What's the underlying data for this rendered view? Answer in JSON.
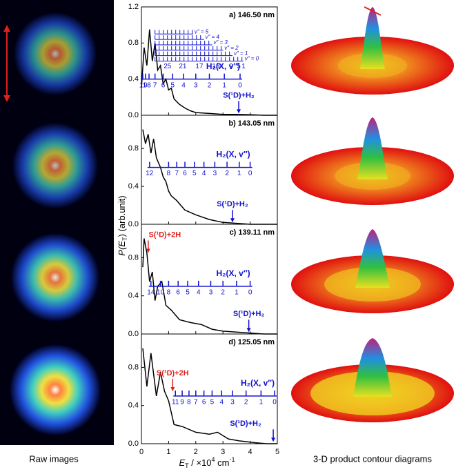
{
  "figure": {
    "y_label": [
      "P(E",
      "T",
      ") (arb.unit)"
    ],
    "x_label": [
      "E",
      "T",
      " / ×10",
      "4",
      " cm",
      "-1"
    ],
    "captions": [
      "Raw images",
      "3-D product contour diagrams"
    ]
  },
  "chart_data": [
    {
      "type": "line",
      "title": "a) 146.50 nm",
      "color": "#000000",
      "xlim": [
        0,
        5
      ],
      "ylim": [
        0,
        1.2
      ],
      "xticks": [
        0,
        1,
        2,
        3,
        4,
        5
      ],
      "yticks": [
        {
          "value": 0,
          "label": "0.0"
        },
        {
          "value": 0.4,
          "label": "0.4"
        },
        {
          "value": 0.8,
          "label": "0.8"
        },
        {
          "value": 1.2,
          "label": "1.2"
        }
      ],
      "x": [
        0,
        0.1,
        0.2,
        0.3,
        0.4,
        0.5,
        0.6,
        0.7,
        0.8,
        0.9,
        1.0,
        1.1,
        1.2,
        1.4,
        1.6,
        1.8,
        2.0,
        2.5,
        3.0,
        3.5,
        4.0,
        4.5,
        5.0
      ],
      "values": [
        0.3,
        0.75,
        0.55,
        0.95,
        0.6,
        0.8,
        0.5,
        0.55,
        0.35,
        0.4,
        0.28,
        0.3,
        0.18,
        0.12,
        0.08,
        0.05,
        0.03,
        0.02,
        0.01,
        0.01,
        0.005,
        0,
        0
      ],
      "ladder": {
        "label": "H₂(X, v″)",
        "y": 0.4,
        "ticks": [
          {
            "x": 0.05,
            "label": "11"
          },
          {
            "x": 0.15,
            "label": "9"
          },
          {
            "x": 0.28,
            "label": "8"
          },
          {
            "x": 0.5,
            "label": "7"
          },
          {
            "x": 0.8,
            "label": "6"
          },
          {
            "x": 1.15,
            "label": "5"
          },
          {
            "x": 1.55,
            "label": "4"
          },
          {
            "x": 2.0,
            "label": "3"
          },
          {
            "x": 2.5,
            "label": "2"
          },
          {
            "x": 3.05,
            "label": "1"
          },
          {
            "x": 3.63,
            "label": "0"
          }
        ]
      },
      "upper_ladders": [
        {
          "label": "v″ = 0",
          "y": 0.6,
          "x_end": 3.75
        },
        {
          "label": "v″ = 1",
          "y": 0.66,
          "x_end": 3.35
        },
        {
          "label": "v″ = 2",
          "y": 0.72,
          "x_end": 3.0
        },
        {
          "label": "v″ = 3",
          "y": 0.78,
          "x_end": 2.6
        },
        {
          "label": "v″ = 4",
          "y": 0.84,
          "x_end": 2.3
        },
        {
          "label": "v″ = 5",
          "y": 0.9,
          "x_end": 1.9
        }
      ],
      "upper_numbers": [
        {
          "x": 0.96,
          "label": "25"
        },
        {
          "x": 1.52,
          "label": "21"
        },
        {
          "x": 2.13,
          "label": "17"
        },
        {
          "x": 2.74,
          "label": "13"
        },
        {
          "x": 3.3,
          "label": "9"
        },
        {
          "x": 3.58,
          "label": "5"
        },
        {
          "x": 3.76,
          "label": "1"
        }
      ],
      "arrows": [
        {
          "text": "S(¹D)+H₂",
          "x": 3.58,
          "y": 0.02,
          "color": "#1010d0"
        }
      ]
    },
    {
      "type": "line",
      "title": "b) 143.05 nm",
      "color": "#000000",
      "xlim": [
        0,
        5
      ],
      "ylim": [
        0,
        1.15
      ],
      "xticks": [
        0,
        1,
        2,
        3,
        4,
        5
      ],
      "yticks": [
        {
          "value": 0,
          "label": "0.0"
        },
        {
          "value": 0.4,
          "label": "0.4"
        },
        {
          "value": 0.8,
          "label": "0.8"
        }
      ],
      "x": [
        0.05,
        0.15,
        0.25,
        0.35,
        0.45,
        0.55,
        0.7,
        0.8,
        0.9,
        1.0,
        1.1,
        1.3,
        1.6,
        2.0,
        2.5,
        3.0,
        3.5,
        4.0,
        4.5,
        5.0
      ],
      "values": [
        1.0,
        0.85,
        0.95,
        0.75,
        0.9,
        0.7,
        0.6,
        0.5,
        0.45,
        0.35,
        0.3,
        0.25,
        0.15,
        0.1,
        0.05,
        0.02,
        0.01,
        0,
        0,
        0
      ],
      "ladder": {
        "label": "H₂(X, v″)",
        "y": 0.6,
        "ticks": [
          {
            "x": 0.3,
            "label": "12"
          },
          {
            "x": 1.0,
            "label": "8"
          },
          {
            "x": 1.3,
            "label": "7"
          },
          {
            "x": 1.6,
            "label": "6"
          },
          {
            "x": 1.95,
            "label": "5"
          },
          {
            "x": 2.3,
            "label": "4"
          },
          {
            "x": 2.7,
            "label": "3"
          },
          {
            "x": 3.15,
            "label": "2"
          },
          {
            "x": 3.6,
            "label": "1"
          },
          {
            "x": 4.0,
            "label": "0"
          }
        ]
      },
      "arrows": [
        {
          "text": "S(¹D)+H₂",
          "x": 3.35,
          "y": 0.02,
          "color": "#1010d0"
        }
      ]
    },
    {
      "type": "line",
      "title": "c) 139.11 nm",
      "color": "#000000",
      "xlim": [
        0,
        5
      ],
      "ylim": [
        0,
        1.15
      ],
      "xticks": [
        0,
        1,
        2,
        3,
        4,
        5
      ],
      "yticks": [
        {
          "value": 0,
          "label": "0.0"
        },
        {
          "value": 0.4,
          "label": "0.4"
        },
        {
          "value": 0.8,
          "label": "0.8"
        }
      ],
      "x": [
        0.05,
        0.1,
        0.2,
        0.3,
        0.4,
        0.5,
        0.6,
        0.75,
        0.9,
        1.1,
        1.4,
        1.8,
        2.2,
        2.6,
        3.0,
        3.5,
        4.0,
        4.5,
        5.0
      ],
      "values": [
        0.7,
        1.0,
        0.85,
        0.55,
        0.65,
        0.35,
        0.5,
        0.55,
        0.3,
        0.25,
        0.15,
        0.12,
        0.1,
        0.05,
        0.03,
        0.02,
        0.01,
        0,
        0
      ],
      "ladder": {
        "label": "H₂(X, v″)",
        "y": 0.5,
        "ticks": [
          {
            "x": 0.35,
            "label": "14"
          },
          {
            "x": 0.7,
            "label": "10"
          },
          {
            "x": 1.0,
            "label": "8"
          },
          {
            "x": 1.35,
            "label": "6"
          },
          {
            "x": 1.7,
            "label": "5"
          },
          {
            "x": 2.1,
            "label": "4"
          },
          {
            "x": 2.55,
            "label": "3"
          },
          {
            "x": 3.0,
            "label": "2"
          },
          {
            "x": 3.5,
            "label": "1"
          },
          {
            "x": 4.0,
            "label": "0"
          }
        ]
      },
      "arrows": [
        {
          "text": "S(¹D)+2H",
          "x": 0.25,
          "y": 0.85,
          "color": "#e0201a"
        },
        {
          "text": "S(¹D)+H₂",
          "x": 3.95,
          "y": 0.02,
          "color": "#1010d0"
        }
      ]
    },
    {
      "type": "line",
      "title": "d) 125.05 nm",
      "color": "#000000",
      "xlim": [
        0,
        5
      ],
      "ylim": [
        0,
        1.15
      ],
      "xticks": [
        0,
        1,
        2,
        3,
        4,
        5
      ],
      "yticks": [
        {
          "value": 0,
          "label": "0.0"
        },
        {
          "value": 0.4,
          "label": "0.4"
        },
        {
          "value": 0.8,
          "label": "0.8"
        }
      ],
      "x": [
        0.05,
        0.2,
        0.35,
        0.55,
        0.7,
        0.85,
        1.0,
        1.2,
        1.5,
        2.0,
        2.5,
        2.8,
        3.2,
        3.6,
        4.2,
        4.6,
        5.0
      ],
      "values": [
        1.0,
        0.6,
        0.95,
        0.5,
        0.75,
        0.55,
        0.45,
        0.2,
        0.18,
        0.12,
        0.1,
        0.12,
        0.05,
        0.03,
        0.01,
        0,
        0
      ],
      "ladder": {
        "label": "H₂(X, v″)",
        "y": 0.5,
        "ticks": [
          {
            "x": 1.25,
            "label": "11"
          },
          {
            "x": 1.5,
            "label": "9"
          },
          {
            "x": 1.75,
            "label": "8"
          },
          {
            "x": 2.0,
            "label": "7"
          },
          {
            "x": 2.3,
            "label": "6"
          },
          {
            "x": 2.6,
            "label": "5"
          },
          {
            "x": 2.95,
            "label": "4"
          },
          {
            "x": 3.35,
            "label": "3"
          },
          {
            "x": 3.85,
            "label": "2"
          },
          {
            "x": 4.4,
            "label": "1"
          },
          {
            "x": 4.9,
            "label": "0"
          }
        ]
      },
      "arrows": [
        {
          "text": "S(¹D)+2H",
          "x": 1.15,
          "y": 0.55,
          "color": "#e0201a"
        },
        {
          "text": "S(¹D)+H₂",
          "x": 4.85,
          "y": 0.02,
          "color": "#1010d0"
        }
      ]
    }
  ]
}
